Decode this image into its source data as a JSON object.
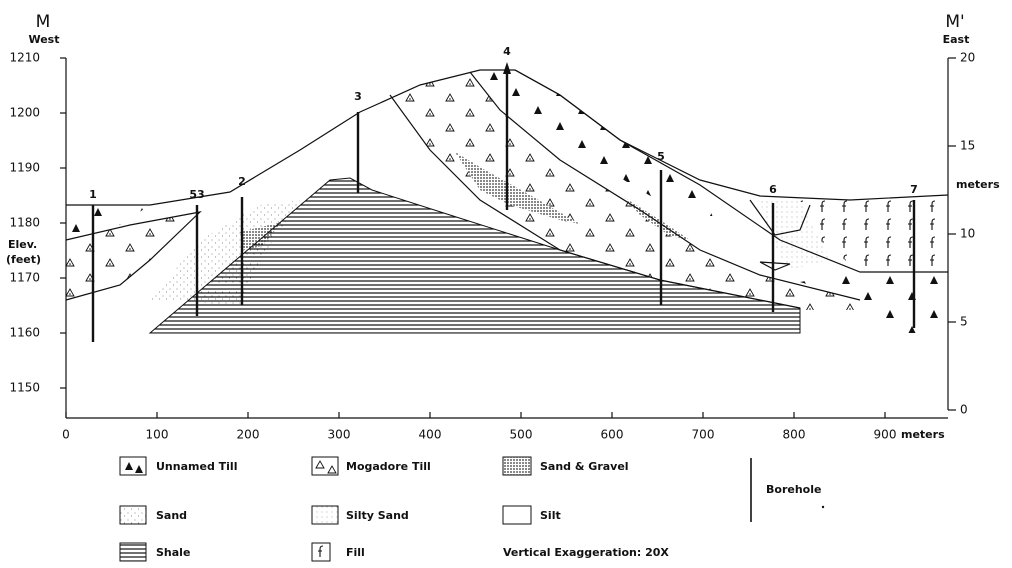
{
  "header": {
    "left_label": "M",
    "left_direction": "West",
    "right_label": "M'",
    "right_direction": "East"
  },
  "left_axis": {
    "title_lines": [
      "Elev.",
      "(feet)"
    ],
    "ticks": [
      "1210",
      "1200",
      "1190",
      "1180",
      "1170",
      "1160",
      "1150"
    ]
  },
  "right_axis": {
    "title": "meters",
    "ticks": [
      "20",
      "15",
      "10",
      "5",
      "0"
    ]
  },
  "bottom_axis": {
    "ticks": [
      "0",
      "100",
      "200",
      "300",
      "400",
      "500",
      "600",
      "700",
      "800",
      "900"
    ],
    "unit": "meters"
  },
  "boreholes": [
    "1",
    "53",
    "2",
    "3",
    "4",
    "5",
    "6",
    "7"
  ],
  "legend": {
    "unnamed_till": "Unnamed Till",
    "mogadore_till": "Mogadore Till",
    "sand_gravel": "Sand & Gravel",
    "sand": "Sand",
    "silty_sand": "Silty Sand",
    "silt": "Silt",
    "shale": "Shale",
    "fill": "Fill",
    "borehole": "Borehole"
  },
  "note": "Vertical Exaggeration: 20X"
}
